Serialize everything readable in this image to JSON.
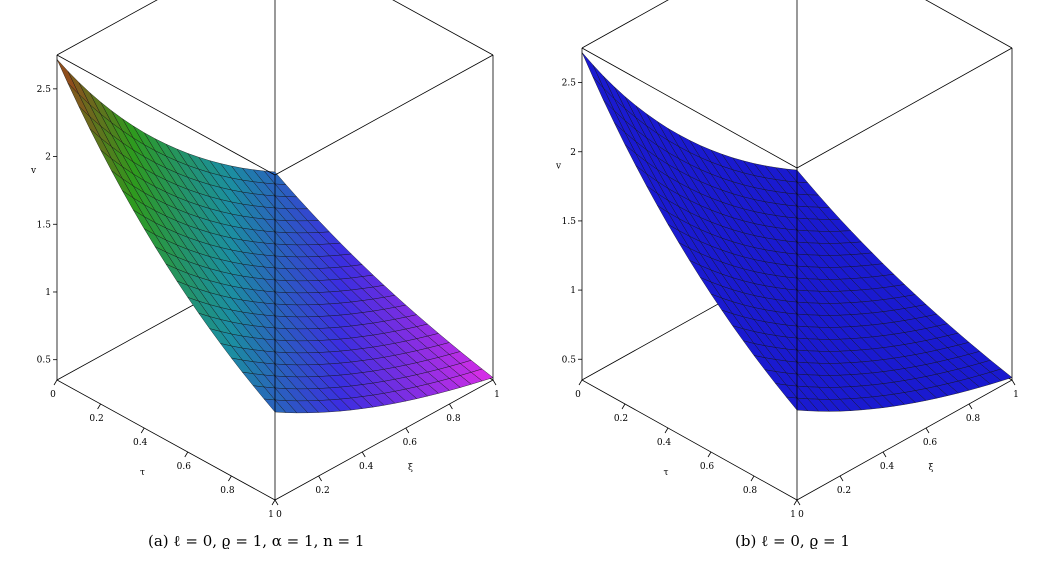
{
  "chart_data": [
    {
      "type": "surface",
      "panel": "a",
      "caption": "(a) ℓ = 0, ϱ = 1, α = 1, n = 1",
      "zlabel": "v",
      "xlabel": "τ",
      "ylabel": "ξ",
      "x_range": [
        0,
        1
      ],
      "y_range": [
        0,
        1
      ],
      "z_range": [
        0.35,
        2.75
      ],
      "x_ticks": [
        "0",
        "0.2",
        "0.4",
        "0.6",
        "0.8",
        "1"
      ],
      "y_ticks": [
        "0",
        "0.2",
        "0.4",
        "0.6",
        "0.8",
        "1"
      ],
      "z_ticks": [
        "0.5",
        "1",
        "1.5",
        "2",
        "2.5"
      ],
      "z_tick_values": [
        0.5,
        1,
        1.5,
        2,
        2.5
      ],
      "function": "v = e^(1 - τ - ξ)",
      "corner_values": {
        "v(0,0)": 2.718,
        "v(1,0)": 1.0,
        "v(0,1)": 1.0,
        "v(1,1)": 0.368
      },
      "colorscheme": "height-rainbow",
      "colors": {
        "max": "#a0401c",
        "high": "#2e9a1e",
        "mid": "#1b8fa0",
        "low": "#3b2ee0",
        "min": "#f22ee8"
      },
      "grid_lines": true
    },
    {
      "type": "surface",
      "panel": "b",
      "caption": "(b) ℓ = 0, ϱ = 1",
      "zlabel": "v",
      "xlabel": "τ",
      "ylabel": "ξ",
      "x_range": [
        0,
        1
      ],
      "y_range": [
        0,
        1
      ],
      "z_range": [
        0.35,
        2.75
      ],
      "x_ticks": [
        "0",
        "0.2",
        "0.4",
        "0.6",
        "0.8",
        "1"
      ],
      "y_ticks": [
        "0",
        "0.2",
        "0.4",
        "0.6",
        "0.8",
        "1"
      ],
      "z_ticks": [
        "0.5",
        "1",
        "1.5",
        "2",
        "2.5"
      ],
      "z_tick_values": [
        0.5,
        1,
        1.5,
        2,
        2.5
      ],
      "function": "v = e^(1 - τ - ξ)",
      "corner_values": {
        "v(0,0)": 2.718,
        "v(1,0)": 1.0,
        "v(0,1)": 1.0,
        "v(1,1)": 0.368
      },
      "colorscheme": "solid",
      "colors": {
        "surface": "#1a1ad0"
      },
      "grid_lines": true
    }
  ]
}
